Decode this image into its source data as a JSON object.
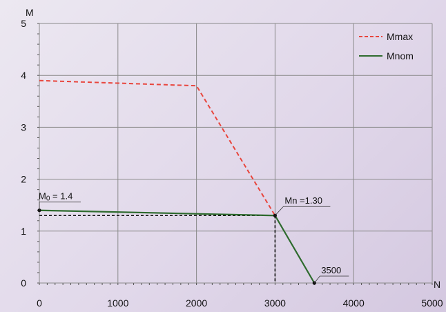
{
  "chart_data": {
    "type": "line",
    "xlabel": "N",
    "ylabel": "M",
    "xlim": [
      0,
      5000
    ],
    "ylim": [
      0,
      5
    ],
    "x_ticks": [
      "0",
      "1000",
      "2000",
      "3000",
      "4000",
      "5000"
    ],
    "y_ticks": [
      "0",
      "1",
      "2",
      "3",
      "4",
      "5"
    ],
    "grid": true,
    "legend_position": "top-right",
    "series": [
      {
        "name": "Mmax",
        "color": "#e8453c",
        "style": "dashed",
        "points": [
          [
            0,
            3.9
          ],
          [
            2000,
            3.8
          ],
          [
            3000,
            1.3
          ]
        ]
      },
      {
        "name": "Mnom",
        "color": "#2e6b2e",
        "style": "solid",
        "points": [
          [
            0,
            1.4
          ],
          [
            3000,
            1.3
          ],
          [
            3500,
            0
          ]
        ]
      }
    ],
    "reference_lines": [
      {
        "points": [
          [
            0,
            1.3
          ],
          [
            3000,
            1.3
          ]
        ],
        "style": "dashed",
        "color": "#111111"
      },
      {
        "points": [
          [
            3000,
            1.3
          ],
          [
            3000,
            0
          ]
        ],
        "style": "dashed",
        "color": "#111111"
      }
    ],
    "markers": [
      [
        0,
        1.4
      ],
      [
        3000,
        1.3
      ],
      [
        3500,
        0
      ]
    ],
    "annotations": [
      {
        "at": [
          0,
          1.4
        ],
        "main": "M",
        "sub": "0",
        "rest": " = 1.4"
      },
      {
        "at": [
          3000,
          1.3
        ],
        "main": "Mn =1.30",
        "sub": "",
        "rest": ""
      },
      {
        "at": [
          3500,
          0
        ],
        "main": "3500",
        "sub": "",
        "rest": ""
      }
    ]
  }
}
